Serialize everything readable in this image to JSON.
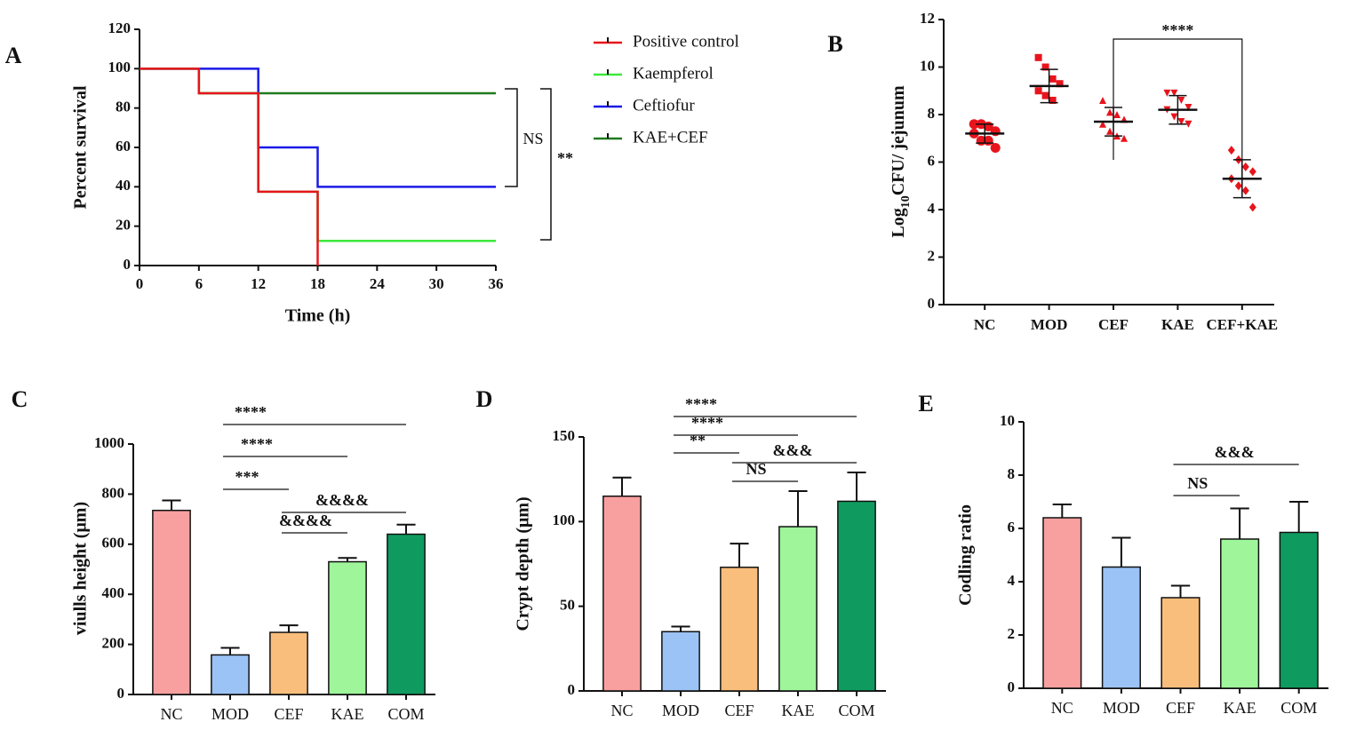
{
  "chart_data": [
    {
      "type": "line",
      "panel": "A",
      "xlabel": "Time (h)",
      "ylabel": "Percent survival",
      "xlim": [
        0,
        36
      ],
      "xticks": [
        0,
        6,
        12,
        18,
        24,
        30,
        36
      ],
      "ylim": [
        0,
        120
      ],
      "yticks": [
        0,
        20,
        40,
        60,
        80,
        100,
        120
      ],
      "legend": "right",
      "series": [
        {
          "name": "Positive control",
          "color": "#e8141c",
          "x": [
            0,
            6,
            12,
            18
          ],
          "values": [
            100,
            87.5,
            37.5,
            0
          ]
        },
        {
          "name": "Kaempferol",
          "color": "#3ee83e",
          "x": [
            0,
            6,
            12,
            18,
            36
          ],
          "values": [
            100,
            87.5,
            37.5,
            12.5,
            12.5
          ]
        },
        {
          "name": "Ceftiofur",
          "color": "#1a1ae8",
          "x": [
            0,
            12,
            18,
            36
          ],
          "values": [
            100,
            60,
            40,
            40
          ]
        },
        {
          "name": "KAE+CEF",
          "color": "#1f7a1f",
          "x": [
            0,
            6,
            36
          ],
          "values": [
            100,
            87.5,
            87.5
          ]
        }
      ],
      "annotations": [
        "NS",
        "**"
      ]
    },
    {
      "type": "scatter",
      "panel": "B",
      "ylabel": [
        "Log",
        "10",
        "CFU/ jejunum"
      ],
      "ylim": [
        0,
        12
      ],
      "yticks": [
        0,
        2,
        4,
        6,
        8,
        10,
        12
      ],
      "color": "#e8141c",
      "categories": [
        "NC",
        "MOD",
        "CEF",
        "KAE",
        "CEF+KAE"
      ],
      "markers": [
        "circle",
        "square",
        "triangle",
        "triangle-down",
        "diamond"
      ],
      "values": [
        [
          7.6,
          7.6,
          7.5,
          7.3,
          7.2,
          6.9,
          6.9,
          6.6
        ],
        [
          10.4,
          10.0,
          9.5,
          9.3,
          9.0,
          8.8,
          8.6
        ],
        [
          8.6,
          8.1,
          8.0,
          7.8,
          7.6,
          7.3,
          7.1,
          7.0
        ],
        [
          8.9,
          8.9,
          8.6,
          8.3,
          8.2,
          7.9,
          7.7,
          7.6
        ],
        [
          6.5,
          6.1,
          5.8,
          5.6,
          5.3,
          5.0,
          4.8,
          4.1
        ]
      ],
      "means": [
        7.2,
        9.2,
        7.7,
        8.2,
        5.3
      ],
      "sd": [
        0.4,
        0.7,
        0.6,
        0.6,
        0.8
      ],
      "annotations": [
        "****"
      ]
    },
    {
      "type": "bar",
      "panel": "C",
      "ylabel": "viulls height (μm)",
      "ylim": [
        0,
        1000
      ],
      "yticks": [
        0,
        200,
        400,
        600,
        800,
        1000
      ],
      "categories": [
        "NC",
        "MOD",
        "CEF",
        "KAE",
        "COM"
      ],
      "colors": [
        "#f8a0a0",
        "#9cc3f5",
        "#f9be7c",
        "#9ef59a",
        "#0f9b5f"
      ],
      "values": [
        735,
        158,
        248,
        530,
        640
      ],
      "errors": [
        40,
        28,
        28,
        15,
        38
      ],
      "annotations": [
        "****",
        "****",
        "***",
        "&&&&",
        "&&&&"
      ]
    },
    {
      "type": "bar",
      "panel": "D",
      "ylabel": "Crypt depth (μm)",
      "ylim": [
        0,
        150
      ],
      "yticks": [
        0,
        50,
        100,
        150
      ],
      "categories": [
        "NC",
        "MOD",
        "CEF",
        "KAE",
        "COM"
      ],
      "colors": [
        "#f8a0a0",
        "#9cc3f5",
        "#f9be7c",
        "#9ef59a",
        "#0f9b5f"
      ],
      "values": [
        115,
        35,
        73,
        97,
        112
      ],
      "errors": [
        11,
        3,
        14,
        21,
        17
      ],
      "annotations": [
        "****",
        "****",
        "**",
        "&&&",
        "NS"
      ]
    },
    {
      "type": "bar",
      "panel": "E",
      "ylabel": "Codling ratio",
      "ylim": [
        0,
        10
      ],
      "yticks": [
        0,
        2,
        4,
        6,
        8,
        10
      ],
      "categories": [
        "NC",
        "MOD",
        "CEF",
        "KAE",
        "COM"
      ],
      "colors": [
        "#f8a0a0",
        "#9cc3f5",
        "#f9be7c",
        "#9ef59a",
        "#0f9b5f"
      ],
      "values": [
        6.4,
        4.55,
        3.4,
        5.6,
        5.85
      ],
      "errors": [
        0.5,
        1.1,
        0.45,
        1.15,
        1.15
      ],
      "annotations": [
        "&&&",
        "NS"
      ]
    }
  ]
}
